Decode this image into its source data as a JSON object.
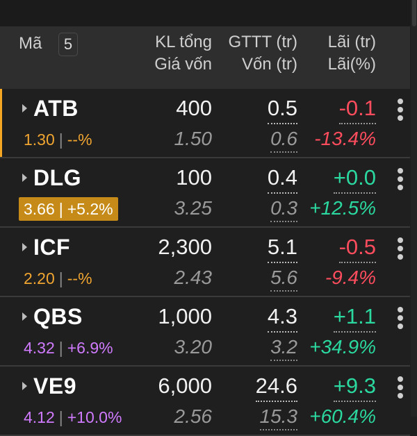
{
  "header": {
    "symbol_label": "Mã",
    "count": "5",
    "qty_label": "KL tổng",
    "cost_label": "Giá vốn",
    "mv_label": "GTTT (tr)",
    "capital_label": "Vốn (tr)",
    "pl_label": "Lãi (tr)",
    "plpct_label": "Lãi(%)"
  },
  "colors": {
    "accent": "#f5a623",
    "highlight_bg": "#c58a17",
    "positive": "#2bd9a0",
    "negative": "#ff4d5e",
    "reference": "#f0a531",
    "ceiling": "#d07bff"
  },
  "rows": [
    {
      "symbol": "ATB",
      "price": "1.30",
      "change": "--%",
      "price_color": "orange",
      "qty": "400",
      "cost": "1.50",
      "mv": "0.5",
      "capital": "0.6",
      "pl": "-0.1",
      "plpct": "-13.4%",
      "pl_color": "red",
      "pct_color": "red"
    },
    {
      "symbol": "DLG",
      "price": "3.66",
      "change": "+5.2%",
      "price_color": "white",
      "qty": "100",
      "cost": "3.25",
      "mv": "0.4",
      "capital": "0.3",
      "pl": "+0.0",
      "plpct": "+12.5%",
      "pl_color": "green",
      "pct_color": "green"
    },
    {
      "symbol": "ICF",
      "price": "2.20",
      "change": "--%",
      "price_color": "orange",
      "qty": "2,300",
      "cost": "2.43",
      "mv": "5.1",
      "capital": "5.6",
      "pl": "-0.5",
      "plpct": "-9.4%",
      "pl_color": "red",
      "pct_color": "red"
    },
    {
      "symbol": "QBS",
      "price": "4.32",
      "change": "+6.9%",
      "price_color": "purple",
      "qty": "1,000",
      "cost": "3.20",
      "mv": "4.3",
      "capital": "3.2",
      "pl": "+1.1",
      "plpct": "+34.9%",
      "pl_color": "green",
      "pct_color": "green"
    },
    {
      "symbol": "VE9",
      "price": "4.12",
      "change": "+10.0%",
      "price_color": "purple",
      "qty": "6,000",
      "cost": "2.56",
      "mv": "24.6",
      "capital": "15.3",
      "pl": "+9.3",
      "plpct": "+60.4%",
      "pl_color": "green",
      "pct_color": "green"
    }
  ]
}
